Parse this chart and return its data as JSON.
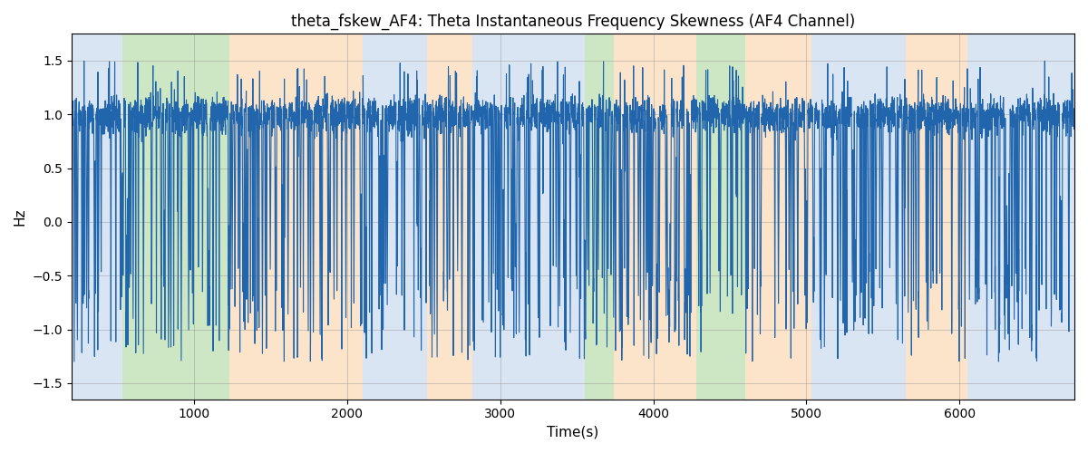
{
  "title": "theta_fskew_AF4: Theta Instantaneous Frequency Skewness (AF4 Channel)",
  "xlabel": "Time(s)",
  "ylabel": "Hz",
  "xlim": [
    200,
    6750
  ],
  "ylim": [
    -1.65,
    1.75
  ],
  "line_color": "#2166ac",
  "line_width": 0.8,
  "background_regions": [
    {
      "xmin": 200,
      "xmax": 530,
      "color": "#aec6e8",
      "alpha": 0.45
    },
    {
      "xmin": 530,
      "xmax": 1230,
      "color": "#90c97a",
      "alpha": 0.45
    },
    {
      "xmin": 1230,
      "xmax": 2100,
      "color": "#f9c58d",
      "alpha": 0.45
    },
    {
      "xmin": 2100,
      "xmax": 2520,
      "color": "#aec6e8",
      "alpha": 0.45
    },
    {
      "xmin": 2520,
      "xmax": 2820,
      "color": "#f9c58d",
      "alpha": 0.45
    },
    {
      "xmin": 2820,
      "xmax": 3550,
      "color": "#aec6e8",
      "alpha": 0.45
    },
    {
      "xmin": 3550,
      "xmax": 3740,
      "color": "#90c97a",
      "alpha": 0.45
    },
    {
      "xmin": 3740,
      "xmax": 4280,
      "color": "#f9c58d",
      "alpha": 0.45
    },
    {
      "xmin": 4280,
      "xmax": 4600,
      "color": "#90c97a",
      "alpha": 0.45
    },
    {
      "xmin": 4600,
      "xmax": 5030,
      "color": "#f9c58d",
      "alpha": 0.45
    },
    {
      "xmin": 5030,
      "xmax": 5650,
      "color": "#aec6e8",
      "alpha": 0.45
    },
    {
      "xmin": 5650,
      "xmax": 6050,
      "color": "#f9c58d",
      "alpha": 0.45
    },
    {
      "xmin": 6050,
      "xmax": 6750,
      "color": "#aec6e8",
      "alpha": 0.45
    }
  ],
  "yticks": [
    -1.5,
    -1.0,
    -0.5,
    0.0,
    0.5,
    1.0,
    1.5
  ],
  "xticks": [
    1000,
    2000,
    3000,
    4000,
    5000,
    6000
  ]
}
